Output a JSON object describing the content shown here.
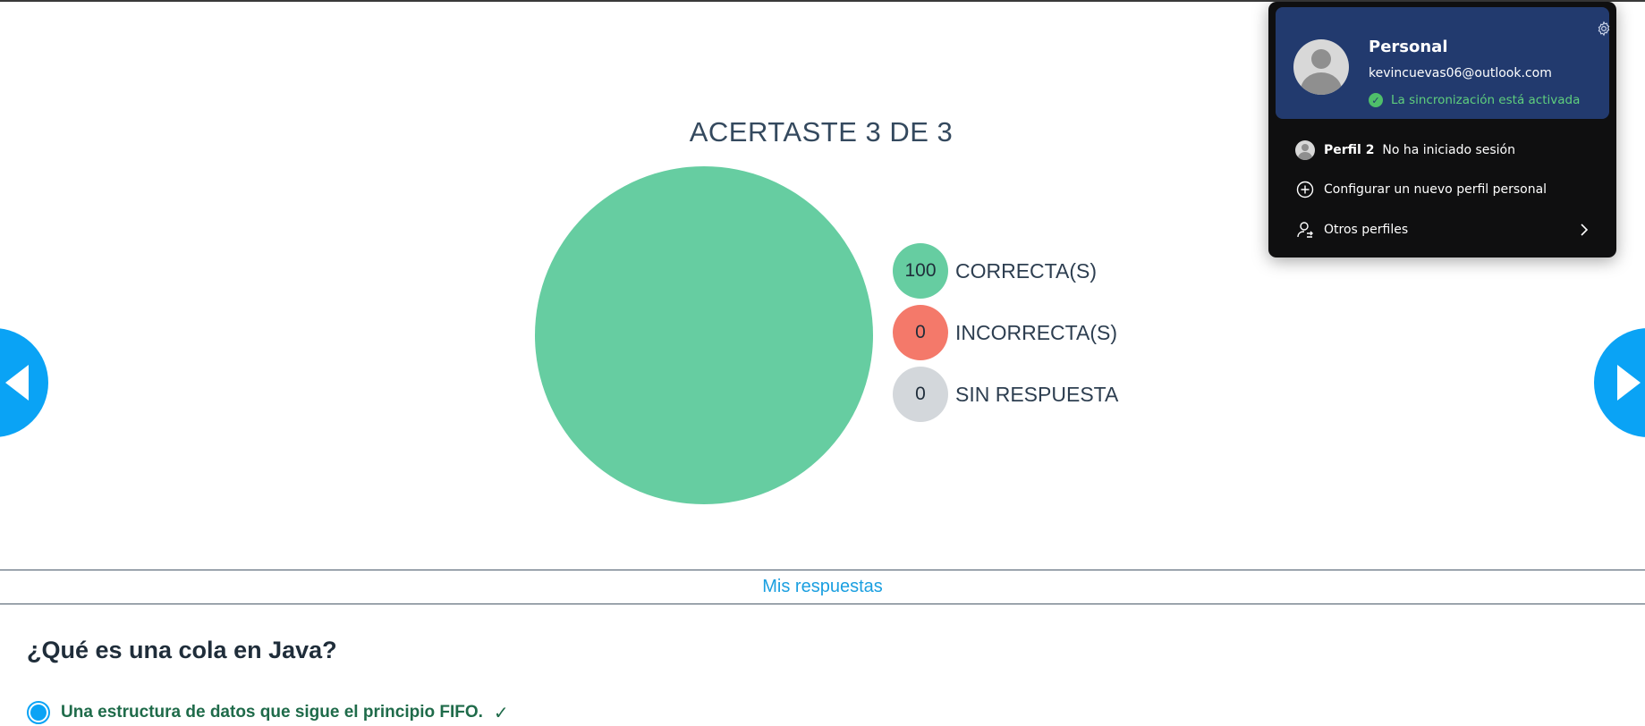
{
  "results": {
    "title": "ACERTASTE 3 DE 3"
  },
  "legend": [
    {
      "value": "100",
      "label": "CORRECTA(S)",
      "color": "#66cda1"
    },
    {
      "value": "0",
      "label": "INCORRECTA(S)",
      "color": "#f4796a"
    },
    {
      "value": "0",
      "label": "SIN RESPUESTA",
      "color": "#d3d7db"
    }
  ],
  "chart_data": {
    "type": "pie",
    "categories": [
      "CORRECTA(S)",
      "INCORRECTA(S)",
      "SIN RESPUESTA"
    ],
    "values": [
      100,
      0,
      0
    ],
    "colors": [
      "#66cda1",
      "#f4796a",
      "#d3d7db"
    ],
    "title": "ACERTASTE 3 DE 3",
    "legend": "right"
  },
  "answers_link": "Mis respuestas",
  "question": {
    "text": "¿Qué es una cola en Java?",
    "selected_answer": "Una estructura de datos que sigue el principio FIFO."
  },
  "profile_popup": {
    "name": "Personal",
    "email": "kevincuevas06@outlook.com",
    "sync_status": "La sincronización está activada",
    "profile2_name": "Perfil 2",
    "profile2_status": "No ha iniciado sesión",
    "new_profile": "Configurar un nuevo perfil personal",
    "other_profiles": "Otros perfiles"
  }
}
